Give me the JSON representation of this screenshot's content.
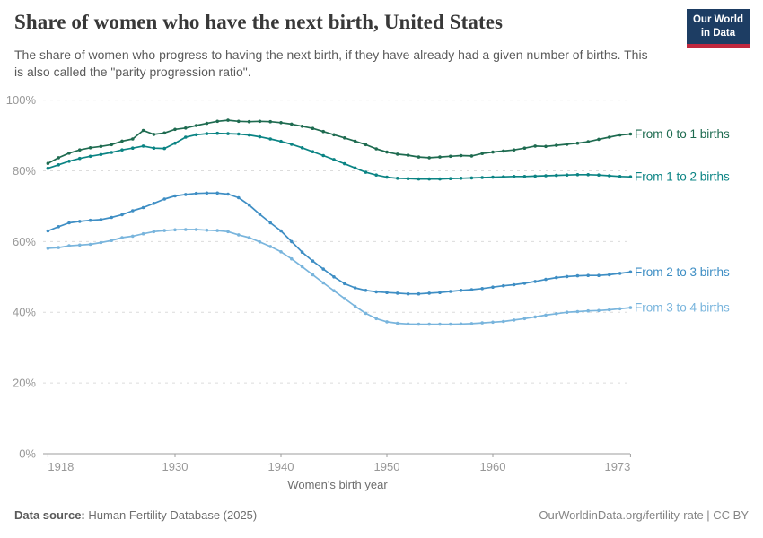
{
  "header": {
    "title": "Share of women who have the next birth, United States",
    "subtitle": "The share of women who progress to having the next birth, if they have already had a given number of births. This is also called the \"parity progression ratio\".",
    "logo_line1": "Our World",
    "logo_line2": "in Data",
    "logo_bg": "#1d3d63",
    "logo_accent": "#c0273d"
  },
  "footer": {
    "source_label": "Data source:",
    "source_value": "Human Fertility Database (2025)",
    "credit": "OurWorldinData.org/fertility-rate | CC BY"
  },
  "chart_data": {
    "type": "line",
    "title": "Share of women who have the next birth, United States",
    "xlabel": "Women's birth year",
    "ylabel": "",
    "ylim": [
      0,
      100
    ],
    "xlim": [
      1918,
      1973
    ],
    "grid": "dashed-horizontal",
    "legend_position": "right-of-line-ends",
    "x_ticks": [
      1918,
      1930,
      1940,
      1950,
      1960,
      1973
    ],
    "y_ticks": [
      0,
      20,
      40,
      60,
      80,
      100
    ],
    "y_tick_suffix": "%",
    "x": [
      1918,
      1919,
      1920,
      1921,
      1922,
      1923,
      1924,
      1925,
      1926,
      1927,
      1928,
      1929,
      1930,
      1931,
      1932,
      1933,
      1934,
      1935,
      1936,
      1937,
      1938,
      1939,
      1940,
      1941,
      1942,
      1943,
      1944,
      1945,
      1946,
      1947,
      1948,
      1949,
      1950,
      1951,
      1952,
      1953,
      1954,
      1955,
      1956,
      1957,
      1958,
      1959,
      1960,
      1961,
      1962,
      1963,
      1964,
      1965,
      1966,
      1967,
      1968,
      1969,
      1970,
      1971,
      1972,
      1973
    ],
    "series": [
      {
        "name": "From 0 to 1 births",
        "color": "#1e6b50",
        "values": [
          82.1,
          83.7,
          85.0,
          85.9,
          86.5,
          86.9,
          87.4,
          88.4,
          89.0,
          91.4,
          90.3,
          90.7,
          91.7,
          92.1,
          92.8,
          93.4,
          94.0,
          94.3,
          94.0,
          93.9,
          94.0,
          93.9,
          93.6,
          93.2,
          92.6,
          92.0,
          91.1,
          90.2,
          89.3,
          88.4,
          87.4,
          86.2,
          85.3,
          84.7,
          84.4,
          83.9,
          83.7,
          83.9,
          84.1,
          84.3,
          84.2,
          84.9,
          85.3,
          85.6,
          85.9,
          86.4,
          87.0,
          86.9,
          87.2,
          87.5,
          87.8,
          88.2,
          88.9,
          89.5,
          90.1,
          90.4
        ]
      },
      {
        "name": "From 1 to 2 births",
        "color": "#0b8484",
        "values": [
          80.7,
          81.7,
          82.7,
          83.5,
          84.1,
          84.6,
          85.2,
          85.9,
          86.4,
          87.0,
          86.4,
          86.3,
          87.8,
          89.5,
          90.2,
          90.5,
          90.6,
          90.5,
          90.4,
          90.1,
          89.6,
          89.0,
          88.3,
          87.5,
          86.5,
          85.4,
          84.3,
          83.2,
          82.0,
          80.8,
          79.6,
          78.8,
          78.2,
          77.9,
          77.8,
          77.7,
          77.7,
          77.7,
          77.8,
          77.9,
          78.0,
          78.1,
          78.2,
          78.3,
          78.4,
          78.4,
          78.5,
          78.6,
          78.7,
          78.8,
          78.9,
          78.9,
          78.8,
          78.6,
          78.4,
          78.3
        ]
      },
      {
        "name": "From 2 to 3 births",
        "color": "#3e8ec4",
        "values": [
          63.0,
          64.2,
          65.3,
          65.7,
          66.0,
          66.2,
          66.8,
          67.6,
          68.7,
          69.6,
          70.8,
          72.0,
          72.9,
          73.3,
          73.6,
          73.7,
          73.7,
          73.4,
          72.4,
          70.3,
          67.7,
          65.3,
          63.0,
          60.0,
          57.0,
          54.5,
          52.2,
          50.0,
          48.1,
          46.9,
          46.2,
          45.8,
          45.6,
          45.4,
          45.2,
          45.2,
          45.4,
          45.6,
          45.9,
          46.2,
          46.4,
          46.7,
          47.1,
          47.5,
          47.8,
          48.2,
          48.7,
          49.3,
          49.8,
          50.1,
          50.3,
          50.4,
          50.4,
          50.6,
          51.0,
          51.4
        ]
      },
      {
        "name": "From 3 to 4 births",
        "color": "#79b5dd",
        "values": [
          58.1,
          58.3,
          58.8,
          59.0,
          59.2,
          59.7,
          60.3,
          61.1,
          61.5,
          62.2,
          62.8,
          63.1,
          63.3,
          63.4,
          63.4,
          63.2,
          63.1,
          62.8,
          61.9,
          61.1,
          59.9,
          58.6,
          57.1,
          55.1,
          52.9,
          50.6,
          48.3,
          46.1,
          43.9,
          41.7,
          39.7,
          38.2,
          37.3,
          36.9,
          36.7,
          36.6,
          36.6,
          36.6,
          36.6,
          36.7,
          36.8,
          37.0,
          37.2,
          37.4,
          37.8,
          38.2,
          38.7,
          39.2,
          39.6,
          40.0,
          40.2,
          40.4,
          40.5,
          40.7,
          41.0,
          41.3
        ]
      }
    ]
  }
}
